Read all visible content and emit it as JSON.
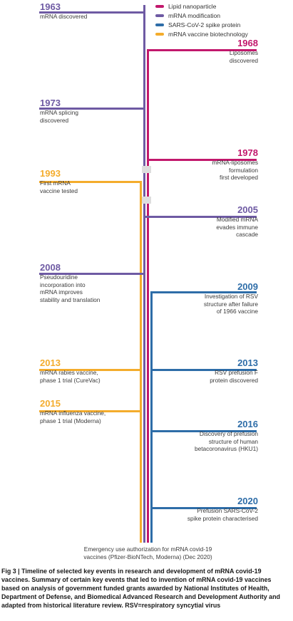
{
  "colors": {
    "lipid": "#c2186c",
    "modification": "#6e5aa3",
    "spike": "#2e6da8",
    "vaccine": "#f4ac2c"
  },
  "legend": [
    {
      "key": "lipid",
      "label": "Lipid nanoparticle"
    },
    {
      "key": "modification",
      "label": "mRNA modification"
    },
    {
      "key": "spike",
      "label": "SARS-CoV-2 spike protein"
    },
    {
      "key": "vaccine",
      "label": "mRNA vaccine biotechnology"
    }
  ],
  "events": [
    {
      "year": "1963",
      "side": "left",
      "cat": "modification",
      "desc": "mRNA discovered"
    },
    {
      "year": "1968",
      "side": "right",
      "cat": "lipid",
      "desc": "Liposomes\ndiscovered"
    },
    {
      "year": "1973",
      "side": "left",
      "cat": "modification",
      "desc": "mRNA splicing\ndiscovered"
    },
    {
      "year": "1978",
      "side": "right",
      "cat": "lipid",
      "desc": "mRNA-liposomes\nformulation\nfirst developed"
    },
    {
      "year": "1993",
      "side": "left",
      "cat": "vaccine",
      "desc": "First mRNA\nvaccine tested"
    },
    {
      "year": "2005",
      "side": "right",
      "cat": "modification",
      "desc": "Modified mRNA\nevades immune\ncascade"
    },
    {
      "year": "2008",
      "side": "left",
      "cat": "modification",
      "desc": "Pseudouridine\nincorporation into\nmRNA improves\nstability and translation"
    },
    {
      "year": "2009",
      "side": "right",
      "cat": "spike",
      "desc": "Investigation of RSV\nstructure after failure\nof 1966 vaccine"
    },
    {
      "year": "2013",
      "side": "left",
      "cat": "vaccine",
      "desc": "mRNA rabies vaccine,\nphase 1 trial (CureVac)"
    },
    {
      "year": "2013",
      "side": "right",
      "cat": "spike",
      "desc": "RSV prefusion F\nprotein discovered"
    },
    {
      "year": "2015",
      "side": "left",
      "cat": "vaccine",
      "desc": "mRNA influenza vaccine,\nphase 1 trial (Moderna)"
    },
    {
      "year": "2016",
      "side": "right",
      "cat": "spike",
      "desc": "Discovery of prefusion\nstructure of human\nbetacoronavirus (HKU1)"
    },
    {
      "year": "2020",
      "side": "right",
      "cat": "spike",
      "desc": "Prefusion SARS-CoV-2\nspike protein characterised"
    }
  ],
  "end_label": "Emergency use authorization for mRNA covid-19\nvaccines (Pfizer-BioNTech, Moderna) (Dec 2020)",
  "caption": {
    "fig": "Fig 3 | ",
    "text": "Timeline of selected key events in research and development of mRNA covid-19 vaccines. Summary of certain key events that led to invention of mRNA covid-19 vaccines based on analysis of government funded grants awarded by National Institutes of Health, Department of Defense, and Biomedical Advanced Research and Development Authority and adapted from historical literature review. RSV=respiratory syncytial virus"
  }
}
